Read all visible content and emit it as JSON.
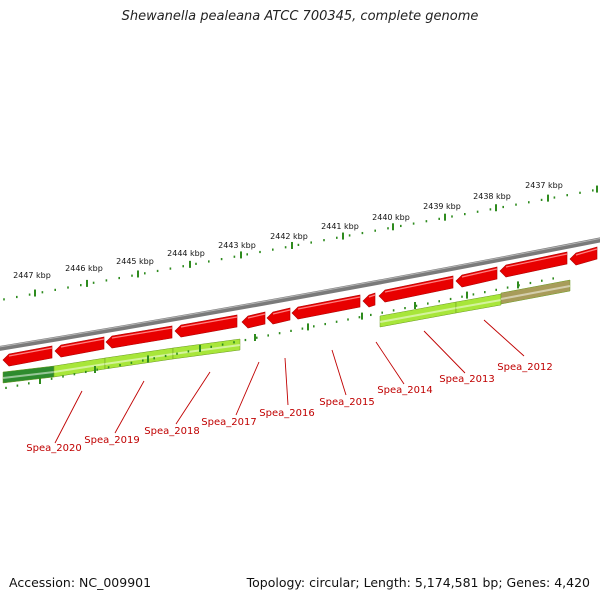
{
  "title": "Shewanella pealeana ATCC 700345, complete genome",
  "footer": {
    "accession": "Accession: NC_009901",
    "summary": "Topology: circular; Length: 5,174,581 bp; Genes: 4,420"
  },
  "colors": {
    "backbone": "#7a7a7a",
    "gene": "#e80000",
    "cds_light": "#a8e63a",
    "cds_dark": "#2e8b2e",
    "cds_olive": "#a89c5a",
    "tick": "#2e8b1e",
    "label": "#c00000"
  },
  "scale_labels": [
    "2437 kbp",
    "2438 kbp",
    "2439 kbp",
    "2440 kbp",
    "2441 kbp",
    "2442 kbp",
    "2443 kbp",
    "2444 kbp",
    "2445 kbp",
    "2446 kbp",
    "2447 kbp"
  ],
  "gene_labels": [
    "Spea_2012",
    "Spea_2013",
    "Spea_2014",
    "Spea_2015",
    "Spea_2016",
    "Spea_2017",
    "Spea_2018",
    "Spea_2019",
    "Spea_2020"
  ]
}
